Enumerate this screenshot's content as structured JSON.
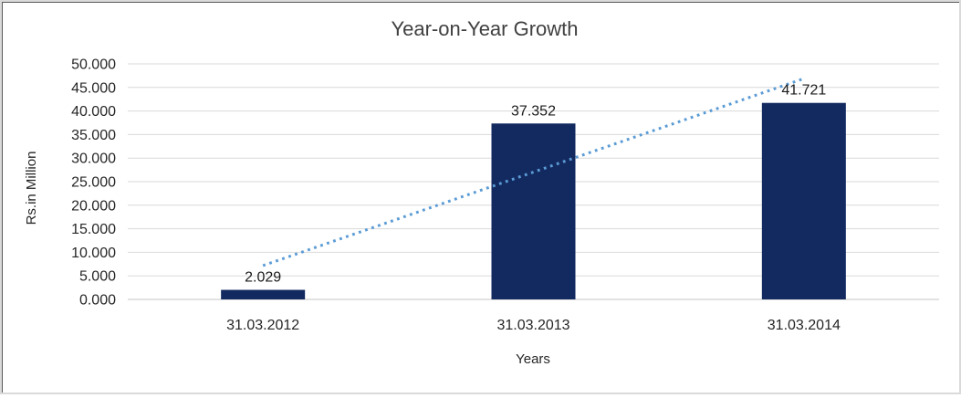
{
  "chart_data": {
    "type": "bar",
    "title": "Year-on-Year Growth",
    "categories": [
      "31.03.2012",
      "31.03.2013",
      "31.03.2014"
    ],
    "values": [
      2.029,
      37.352,
      41.721
    ],
    "data_labels": [
      "2.029",
      "37.352",
      "41.721"
    ],
    "xlabel": "Years",
    "ylabel": "Rs.in Million",
    "ylim": [
      0,
      50
    ],
    "ytick_step": 5,
    "ytick_labels": [
      "0.000",
      "5.000",
      "10.000",
      "15.000",
      "20.000",
      "25.000",
      "30.000",
      "35.000",
      "40.000",
      "45.000",
      "50.000"
    ],
    "grid": "horizontal",
    "legend": "none",
    "trendline": {
      "type": "linear",
      "style": "dotted",
      "color": "#5b9bd5"
    },
    "colors": {
      "bar": "#132a60",
      "gridline": "#d9d9d9",
      "zero_line": "#c6c6c6",
      "title_text": "#404040",
      "axis_text": "#262626",
      "label_text": "#1a1a1a"
    }
  }
}
